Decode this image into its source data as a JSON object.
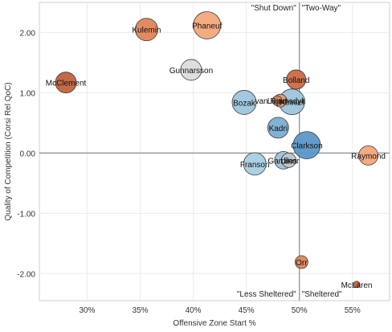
{
  "chart_data": {
    "type": "scatter",
    "xlabel": "Offensive Zone Start %",
    "ylabel": "Quality of Competition (Corsi Rel QoC)",
    "xlim": [
      25.5,
      58.5
    ],
    "ylim": [
      -2.45,
      2.5
    ],
    "x_ticks": [
      {
        "value": 30,
        "label": "30%"
      },
      {
        "value": 35,
        "label": "35%"
      },
      {
        "value": 40,
        "label": "40%"
      },
      {
        "value": 45,
        "label": "45%"
      },
      {
        "value": 50,
        "label": "50%"
      },
      {
        "value": 55,
        "label": "55%"
      }
    ],
    "y_ticks": [
      {
        "value": 2,
        "label": "2.00"
      },
      {
        "value": 1,
        "label": "1.00"
      },
      {
        "value": 0,
        "label": "0.00"
      },
      {
        "value": -1,
        "label": "-1.00"
      },
      {
        "value": -2,
        "label": "-2.00"
      }
    ],
    "grid": true,
    "reference_lines": {
      "x": 50,
      "y": 0
    },
    "quadrant_labels": {
      "top_left": "\"Shut Down\"",
      "top_right": "\"Two-Way\"",
      "bottom_left": "\"Less Sheltered\"",
      "bottom_right": "\"Sheltered\""
    },
    "points": [
      {
        "label": "Kulemin",
        "x": 35.6,
        "y": 2.05,
        "size": 14,
        "color": "#e0855a"
      },
      {
        "label": "Phaneuf",
        "x": 41.3,
        "y": 2.12,
        "size": 17,
        "color": "#f4a77a"
      },
      {
        "label": "Gunnarsson",
        "x": 39.8,
        "y": 1.38,
        "size": 13,
        "color": "#dcdcdc"
      },
      {
        "label": "McClement",
        "x": 28.0,
        "y": 1.17,
        "size": 13,
        "color": "#c0623d"
      },
      {
        "label": "Bolland",
        "x": 49.7,
        "y": 1.22,
        "size": 12,
        "color": "#cc6a45"
      },
      {
        "label": "van Riemsdyk",
        "x": 48.2,
        "y": 0.87,
        "size": 8,
        "color": "#e89a72"
      },
      {
        "label": "Lupul",
        "x": 47.9,
        "y": 0.87,
        "size": 6,
        "color": "#d98a66"
      },
      {
        "label": "Kessel",
        "x": 49.3,
        "y": 0.85,
        "size": 16,
        "color": "#9dc5dc"
      },
      {
        "label": "Bozak",
        "x": 44.8,
        "y": 0.84,
        "size": 15,
        "color": "#9dc5dc"
      },
      {
        "label": "Kadri",
        "x": 48.0,
        "y": 0.42,
        "size": 13,
        "color": "#7aaed0"
      },
      {
        "label": "Clarkson",
        "x": 50.7,
        "y": 0.13,
        "size": 17,
        "color": "#5b97c9"
      },
      {
        "label": "Raymond",
        "x": 56.5,
        "y": -0.04,
        "size": 12,
        "color": "#f4a77a"
      },
      {
        "label": "Gardiner",
        "x": 48.5,
        "y": -0.12,
        "size": 11,
        "color": "#9fc0d6"
      },
      {
        "label": "Liles",
        "x": 49.0,
        "y": -0.12,
        "size": 9,
        "color": "#bfc7cc"
      },
      {
        "label": "Franson",
        "x": 45.8,
        "y": -0.18,
        "size": 14,
        "color": "#a6cfe2"
      },
      {
        "label": "Orr",
        "x": 50.2,
        "y": -1.81,
        "size": 8,
        "color": "#e0855a"
      },
      {
        "label": "McLaren",
        "x": 55.4,
        "y": -2.18,
        "size": 4,
        "color": "#d1623a"
      }
    ]
  }
}
